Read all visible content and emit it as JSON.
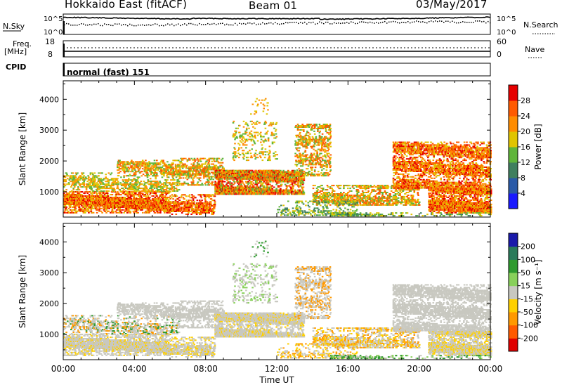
{
  "header": {
    "radar": "Hokkaido East (fitACF)",
    "beam": "Beam 01",
    "date": "03/May/2017"
  },
  "top_panels": {
    "nsky_label": "N.Sky",
    "nsearch_label": "N.Search",
    "noise_ticks_left": [
      "10^5",
      "10^0"
    ],
    "noise_ticks_right": [
      "10^5",
      "10^0"
    ],
    "freq_label_1": "Freq.",
    "freq_label_2": "[MHz]",
    "freq_ticks": [
      "18",
      "8"
    ],
    "nave_label": "Nave",
    "nave_ticks": [
      "60",
      "0"
    ],
    "cpid_label": "CPID",
    "cpid_mode": "normal (fast) 151"
  },
  "chart_data": [
    {
      "type": "heatmap",
      "name": "power",
      "ylabel": "Slant Range [km]",
      "xlabel": "",
      "xlim": [
        0,
        24
      ],
      "ylim": [
        180,
        4600
      ],
      "yticks": [
        "1000",
        "2000",
        "3000",
        "4000"
      ],
      "colorbar_label": "Power [dB]",
      "colorbar_ticks": [
        "4",
        "8",
        "12",
        "16",
        "20",
        "24",
        "28"
      ],
      "colors": [
        "#1a1aff",
        "#2a5aa8",
        "#3f7f5f",
        "#5fb53a",
        "#e0c400",
        "#ff8c00",
        "#ff5a00",
        "#e60000"
      ]
    },
    {
      "type": "heatmap",
      "name": "velocity",
      "ylabel": "Slant Range [km]",
      "xlabel": "Time UT",
      "xlim": [
        0,
        24
      ],
      "ylim": [
        180,
        4600
      ],
      "yticks": [
        "1000",
        "2000",
        "3000",
        "4000"
      ],
      "xticks": [
        "00:00",
        "04:00",
        "08:00",
        "12:00",
        "16:00",
        "20:00",
        "00:00"
      ],
      "colorbar_label": "Velocity [m s⁻¹]",
      "colorbar_ticks": [
        "200",
        "100",
        "50",
        "15",
        "-15",
        "-50",
        "-100",
        "-200"
      ],
      "colors": [
        "#1a1aaa",
        "#2a7a5a",
        "#2e9a2e",
        "#88d05a",
        "#c8c8c0",
        "#ffd000",
        "#ff9900",
        "#ff5a00",
        "#e00000"
      ]
    }
  ]
}
